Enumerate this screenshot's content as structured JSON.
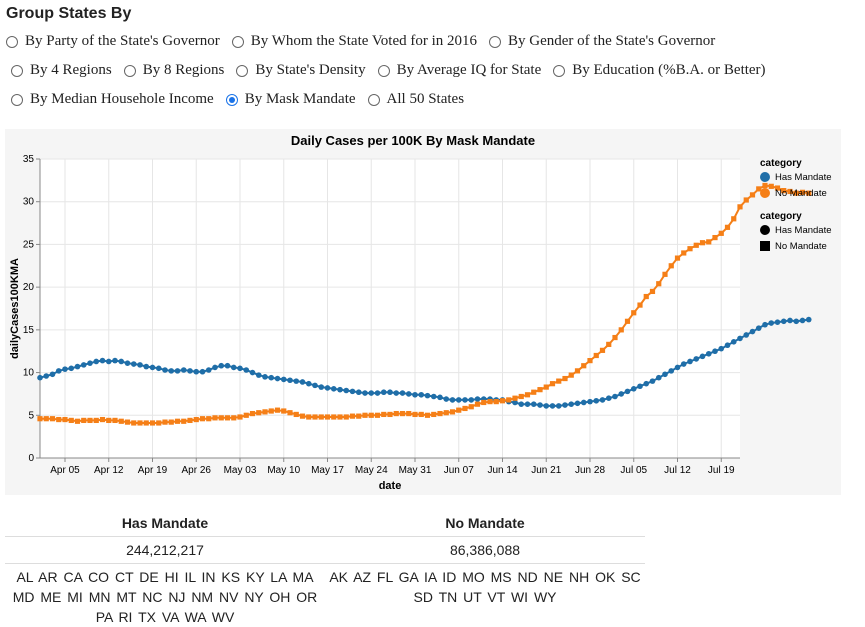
{
  "heading": "Group States By",
  "radio_rows": [
    [
      "By Party of the State's Governor",
      "By Whom the State Voted for in 2016",
      "By Gender of the State's Governor"
    ],
    [
      "By 4 Regions",
      "By 8 Regions",
      "By State's Density",
      "By Average IQ for State",
      "By Education (%B.A. or Better)"
    ],
    [
      "By Median Househole Income",
      "By Mask Mandate",
      "All 50 States"
    ]
  ],
  "selected_option": "By Mask Mandate",
  "colors": {
    "has_mandate": "#1f6ea8",
    "no_mandate": "#f57f17",
    "radio_accent": "#1a73e8"
  },
  "chart_data": {
    "type": "line",
    "title": "Daily Cases per 100K By Mask Mandate",
    "xlabel": "date",
    "ylabel": "dailyCases100KMA",
    "ylim": [
      0,
      35
    ],
    "yticks": [
      0,
      5,
      10,
      15,
      20,
      25,
      30,
      35
    ],
    "x_start": "2020-04-01",
    "x_end": "2020-07-22",
    "xticks": [
      "Apr 05",
      "Apr 12",
      "Apr 19",
      "Apr 26",
      "May 03",
      "May 10",
      "May 17",
      "May 24",
      "May 31",
      "Jun 07",
      "Jun 14",
      "Jun 21",
      "Jun 28",
      "Jul 05",
      "Jul 12",
      "Jul 19"
    ],
    "grid": true,
    "legend_position": "right",
    "legend_color_title": "category",
    "legend_shape_title": "category",
    "series": [
      {
        "name": "Has Mandate",
        "marker": "circle",
        "values": [
          9.4,
          9.6,
          9.8,
          10.2,
          10.4,
          10.5,
          10.7,
          10.9,
          11.1,
          11.3,
          11.4,
          11.3,
          11.4,
          11.3,
          11.1,
          11.0,
          10.9,
          10.7,
          10.6,
          10.5,
          10.3,
          10.2,
          10.2,
          10.3,
          10.2,
          10.1,
          10.1,
          10.3,
          10.6,
          10.8,
          10.8,
          10.6,
          10.5,
          10.3,
          10.0,
          9.7,
          9.5,
          9.4,
          9.3,
          9.2,
          9.1,
          9.0,
          8.9,
          8.7,
          8.5,
          8.3,
          8.2,
          8.1,
          8.0,
          7.9,
          7.8,
          7.7,
          7.6,
          7.6,
          7.6,
          7.7,
          7.7,
          7.6,
          7.6,
          7.5,
          7.4,
          7.4,
          7.3,
          7.2,
          7.1,
          6.9,
          6.8,
          6.8,
          6.8,
          6.8,
          6.9,
          6.9,
          6.9,
          6.8,
          6.8,
          6.6,
          6.5,
          6.3,
          6.3,
          6.3,
          6.2,
          6.1,
          6.1,
          6.1,
          6.2,
          6.3,
          6.4,
          6.5,
          6.6,
          6.7,
          6.8,
          7.0,
          7.2,
          7.5,
          7.8,
          8.1,
          8.4,
          8.7,
          9.0,
          9.4,
          9.8,
          10.2,
          10.6,
          11.0,
          11.3,
          11.6,
          11.9,
          12.2,
          12.5,
          12.8,
          13.2,
          13.6,
          14.0,
          14.4,
          14.8,
          15.2,
          15.6,
          15.8,
          15.9,
          16.0,
          16.1,
          16.0,
          16.1,
          16.2
        ]
      },
      {
        "name": "No Mandate",
        "marker": "square",
        "values": [
          4.6,
          4.6,
          4.6,
          4.5,
          4.5,
          4.4,
          4.3,
          4.4,
          4.4,
          4.4,
          4.5,
          4.4,
          4.4,
          4.3,
          4.2,
          4.1,
          4.1,
          4.1,
          4.1,
          4.1,
          4.2,
          4.2,
          4.3,
          4.3,
          4.4,
          4.5,
          4.6,
          4.6,
          4.7,
          4.7,
          4.7,
          4.7,
          4.8,
          5.0,
          5.2,
          5.3,
          5.4,
          5.5,
          5.6,
          5.5,
          5.3,
          5.1,
          4.9,
          4.8,
          4.8,
          4.8,
          4.8,
          4.8,
          4.8,
          4.8,
          4.9,
          4.9,
          5.0,
          5.0,
          5.0,
          5.1,
          5.1,
          5.2,
          5.2,
          5.2,
          5.1,
          5.1,
          5.0,
          5.1,
          5.2,
          5.3,
          5.4,
          5.6,
          5.8,
          6.0,
          6.3,
          6.5,
          6.6,
          6.6,
          6.7,
          6.8,
          7.0,
          7.2,
          7.4,
          7.7,
          8.0,
          8.3,
          8.7,
          9.0,
          9.3,
          9.7,
          10.2,
          10.8,
          11.4,
          12.0,
          12.6,
          13.3,
          14.1,
          15.0,
          16.0,
          17.0,
          17.9,
          18.9,
          19.5,
          20.4,
          21.5,
          22.5,
          23.4,
          24.0,
          24.5,
          24.9,
          25.2,
          25.3,
          25.8,
          26.3,
          27.0,
          28.0,
          29.4,
          30.2,
          30.8,
          31.5,
          31.9,
          31.8,
          31.6,
          31.3,
          31.2,
          31.0,
          31.1,
          31.0
        ]
      }
    ]
  },
  "table": {
    "headers": [
      "Has Mandate",
      "No Mandate"
    ],
    "populations": [
      "244,212,217",
      "86,386,088"
    ],
    "states": [
      "AL AR CA CO CT DE HI IL IN KS KY LA MA MD ME MI MN MT NC NJ NM NV NY OH OR PA RI TX VA WA WV",
      "AK AZ FL GA IA ID MO MS ND NE NH OK SC SD TN UT VT WI WY"
    ]
  }
}
